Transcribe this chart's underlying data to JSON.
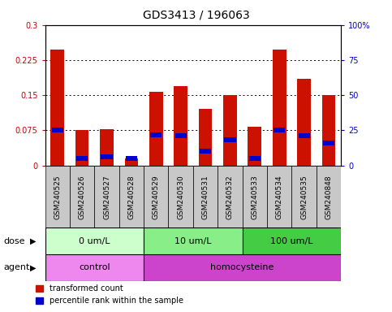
{
  "title": "GDS3413 / 196063",
  "samples": [
    "GSM240525",
    "GSM240526",
    "GSM240527",
    "GSM240528",
    "GSM240529",
    "GSM240530",
    "GSM240531",
    "GSM240532",
    "GSM240533",
    "GSM240534",
    "GSM240535",
    "GSM240848"
  ],
  "red_values": [
    0.248,
    0.075,
    0.078,
    0.015,
    0.158,
    0.17,
    0.12,
    0.15,
    0.082,
    0.248,
    0.185,
    0.15
  ],
  "blue_values": [
    0.075,
    0.015,
    0.018,
    0.015,
    0.065,
    0.063,
    0.03,
    0.055,
    0.015,
    0.075,
    0.063,
    0.048
  ],
  "ylim": [
    0,
    0.3
  ],
  "y2lim": [
    0,
    100
  ],
  "yticks": [
    0,
    0.075,
    0.15,
    0.225,
    0.3
  ],
  "y2ticks": [
    0,
    25,
    50,
    75,
    100
  ],
  "ytick_labels": [
    "0",
    "0.075",
    "0.15",
    "0.225",
    "0.3"
  ],
  "y2tick_labels": [
    "0",
    "25",
    "50",
    "75",
    "100%"
  ],
  "dose_groups": [
    {
      "label": "0 um/L",
      "start": 0,
      "end": 4,
      "color": "#ccffcc"
    },
    {
      "label": "10 um/L",
      "start": 4,
      "end": 8,
      "color": "#88ee88"
    },
    {
      "label": "100 um/L",
      "start": 8,
      "end": 12,
      "color": "#44cc44"
    }
  ],
  "agent_groups": [
    {
      "label": "control",
      "start": 0,
      "end": 4,
      "color": "#ee88ee"
    },
    {
      "label": "homocysteine",
      "start": 4,
      "end": 12,
      "color": "#cc44cc"
    }
  ],
  "dose_label": "dose",
  "agent_label": "agent",
  "bar_color": "#cc1100",
  "blue_color": "#0000cc",
  "legend_red": "transformed count",
  "legend_blue": "percentile rank within the sample",
  "plot_bg": "#ffffff",
  "sample_box_bg": "#c8c8c8",
  "title_fontsize": 10,
  "tick_fontsize": 7,
  "sample_fontsize": 6.5
}
